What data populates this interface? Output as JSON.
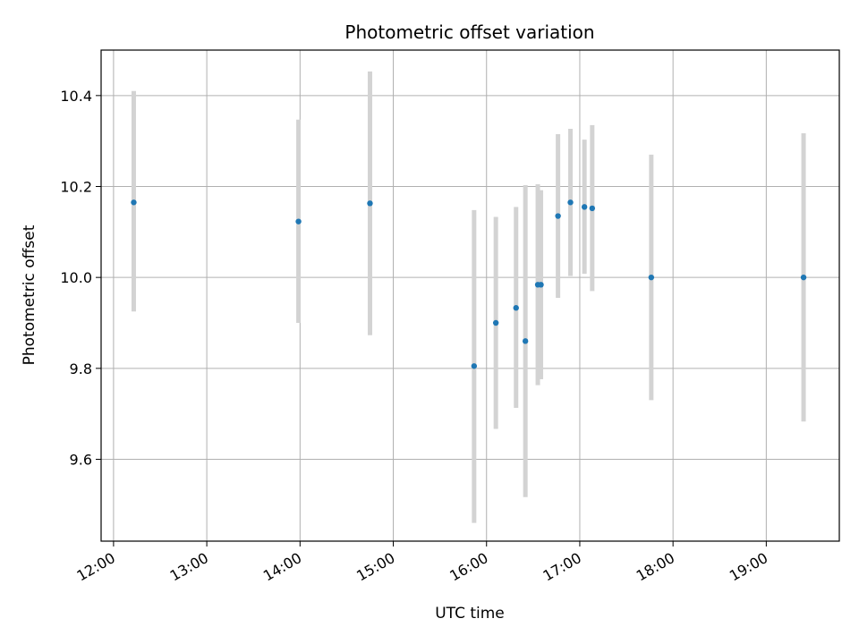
{
  "chart_data": {
    "type": "scatter",
    "title": "Photometric offset variation",
    "xlabel": "UTC time",
    "ylabel": "Photometric offset",
    "xlim": [
      "11:52",
      "19:47"
    ],
    "ylim": [
      9.42,
      10.5
    ],
    "x_ticks": [
      "12:00",
      "13:00",
      "14:00",
      "15:00",
      "16:00",
      "17:00",
      "18:00",
      "19:00"
    ],
    "y_ticks": [
      9.6,
      9.8,
      10.0,
      10.2,
      10.4
    ],
    "grid": true,
    "legend": "none",
    "colors": {
      "marker": "#1f77b4",
      "errorbar": "#d3d3d3",
      "grid": "#b0b0b0"
    },
    "points": [
      {
        "time": "12:13",
        "y": 10.165,
        "err_low": 9.925,
        "err_high": 10.41
      },
      {
        "time": "13:59",
        "y": 10.123,
        "err_low": 9.9,
        "err_high": 10.347
      },
      {
        "time": "14:45",
        "y": 10.163,
        "err_low": 9.873,
        "err_high": 10.453
      },
      {
        "time": "15:52",
        "y": 9.805,
        "err_low": 9.46,
        "err_high": 10.148
      },
      {
        "time": "16:06",
        "y": 9.9,
        "err_low": 9.667,
        "err_high": 10.133
      },
      {
        "time": "16:19",
        "y": 9.933,
        "err_low": 9.713,
        "err_high": 10.155
      },
      {
        "time": "16:25",
        "y": 9.86,
        "err_low": 9.517,
        "err_high": 10.203
      },
      {
        "time": "16:33",
        "y": 9.984,
        "err_low": 9.763,
        "err_high": 10.205
      },
      {
        "time": "16:35",
        "y": 9.984,
        "err_low": 9.776,
        "err_high": 10.192
      },
      {
        "time": "16:46",
        "y": 10.135,
        "err_low": 9.955,
        "err_high": 10.315
      },
      {
        "time": "16:54",
        "y": 10.165,
        "err_low": 10.003,
        "err_high": 10.327
      },
      {
        "time": "17:03",
        "y": 10.155,
        "err_low": 10.008,
        "err_high": 10.303
      },
      {
        "time": "17:08",
        "y": 10.152,
        "err_low": 9.97,
        "err_high": 10.335
      },
      {
        "time": "17:46",
        "y": 10.0,
        "err_low": 9.73,
        "err_high": 10.27
      },
      {
        "time": "19:24",
        "y": 10.0,
        "err_low": 9.683,
        "err_high": 10.317
      }
    ]
  }
}
